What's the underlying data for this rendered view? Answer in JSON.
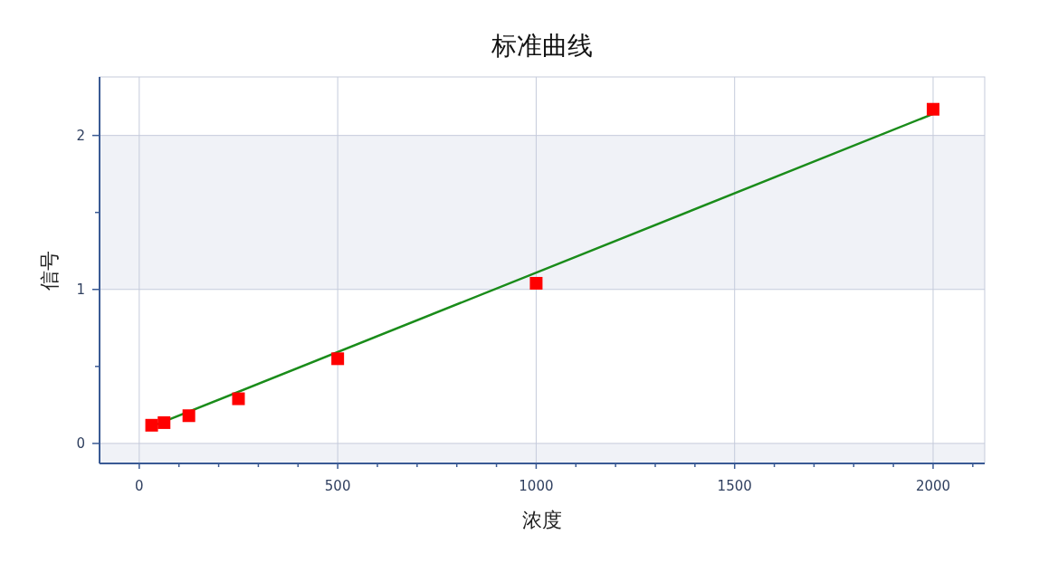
{
  "chart_data": {
    "type": "scatter",
    "title": "标准曲线",
    "xlabel": "浓度",
    "ylabel": "信号",
    "xlim": [
      -100,
      2130
    ],
    "ylim": [
      -0.13,
      2.38
    ],
    "xticks": [
      0,
      {
        "value": 100,
        "label": null
      },
      {
        "value": 200,
        "label": null
      },
      {
        "value": 300,
        "label": null
      },
      {
        "value": 400,
        "label": null
      },
      500,
      {
        "value": 600,
        "label": null
      },
      {
        "value": 700,
        "label": null
      },
      {
        "value": 800,
        "label": null
      },
      {
        "value": 900,
        "label": null
      },
      1000,
      {
        "value": 1100,
        "label": null
      },
      {
        "value": 1200,
        "label": null
      },
      {
        "value": 1300,
        "label": null
      },
      {
        "value": 1400,
        "label": null
      },
      1500,
      {
        "value": 1600,
        "label": null
      },
      {
        "value": 1700,
        "label": null
      },
      {
        "value": 1800,
        "label": null
      },
      {
        "value": 1900,
        "label": null
      },
      2000,
      {
        "value": 2100,
        "label": null
      }
    ],
    "yticks": [
      0,
      {
        "value": 0.5,
        "label": null
      },
      1,
      {
        "value": 1.5,
        "label": null
      },
      2
    ],
    "grid": true,
    "marker": "square",
    "bands": [
      {
        "axis": "y",
        "from": -0.13,
        "to": 0,
        "color": "#f0f2f7"
      },
      {
        "axis": "y",
        "from": 1,
        "to": 2,
        "color": "#f0f2f7"
      }
    ],
    "series": [
      {
        "type": "line",
        "marker": "none",
        "color": "#1a8c1a",
        "x": [
          31.25,
          2000
        ],
        "values": [
          0.11,
          2.14
        ]
      },
      {
        "color": "#ff0000",
        "x": [
          31.25,
          62.5,
          125,
          250,
          500,
          1000,
          2000
        ],
        "values": [
          0.118,
          0.135,
          0.18,
          0.29,
          0.55,
          1.04,
          2.17
        ]
      }
    ]
  }
}
